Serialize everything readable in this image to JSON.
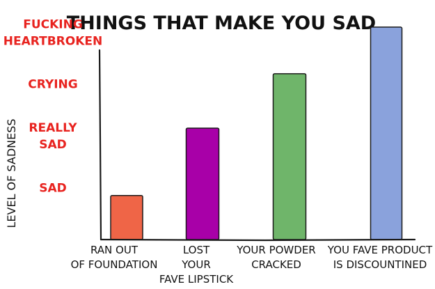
{
  "chart_data": {
    "type": "bar",
    "title": "THINGS THAT MAKE YOU SAD",
    "ylabel": "LEVEL OF SADNESS",
    "xlabel": "",
    "y_levels": [
      {
        "id": "sad",
        "label_lines": [
          "SAD"
        ],
        "value": 1
      },
      {
        "id": "really-sad",
        "label_lines": [
          "REALLY",
          "SAD"
        ],
        "value": 2
      },
      {
        "id": "crying",
        "label_lines": [
          "CRYING"
        ],
        "value": 3
      },
      {
        "id": "heartbroken",
        "label_lines": [
          "FUCKING",
          "HEARTBROKEN"
        ],
        "value": 4
      }
    ],
    "ylim": [
      0,
      4.3
    ],
    "grid": false,
    "legend": "none",
    "categories": [
      {
        "label_lines": [
          "RAN OUT",
          "OF FOUNDATION"
        ],
        "value": 0.85,
        "color": "#ef6547"
      },
      {
        "label_lines": [
          "LOST",
          "YOUR",
          "FAVE LIPSTICK"
        ],
        "value": 2.15,
        "color": "#a800a8"
      },
      {
        "label_lines": [
          "YOUR POWDER",
          "CRACKED"
        ],
        "value": 3.2,
        "color": "#6fb56a"
      },
      {
        "label_lines": [
          "YOU FAVE PRODUCT",
          "IS DISCOUNTINED"
        ],
        "value": 4.1,
        "color": "#8aa2dc"
      }
    ]
  }
}
